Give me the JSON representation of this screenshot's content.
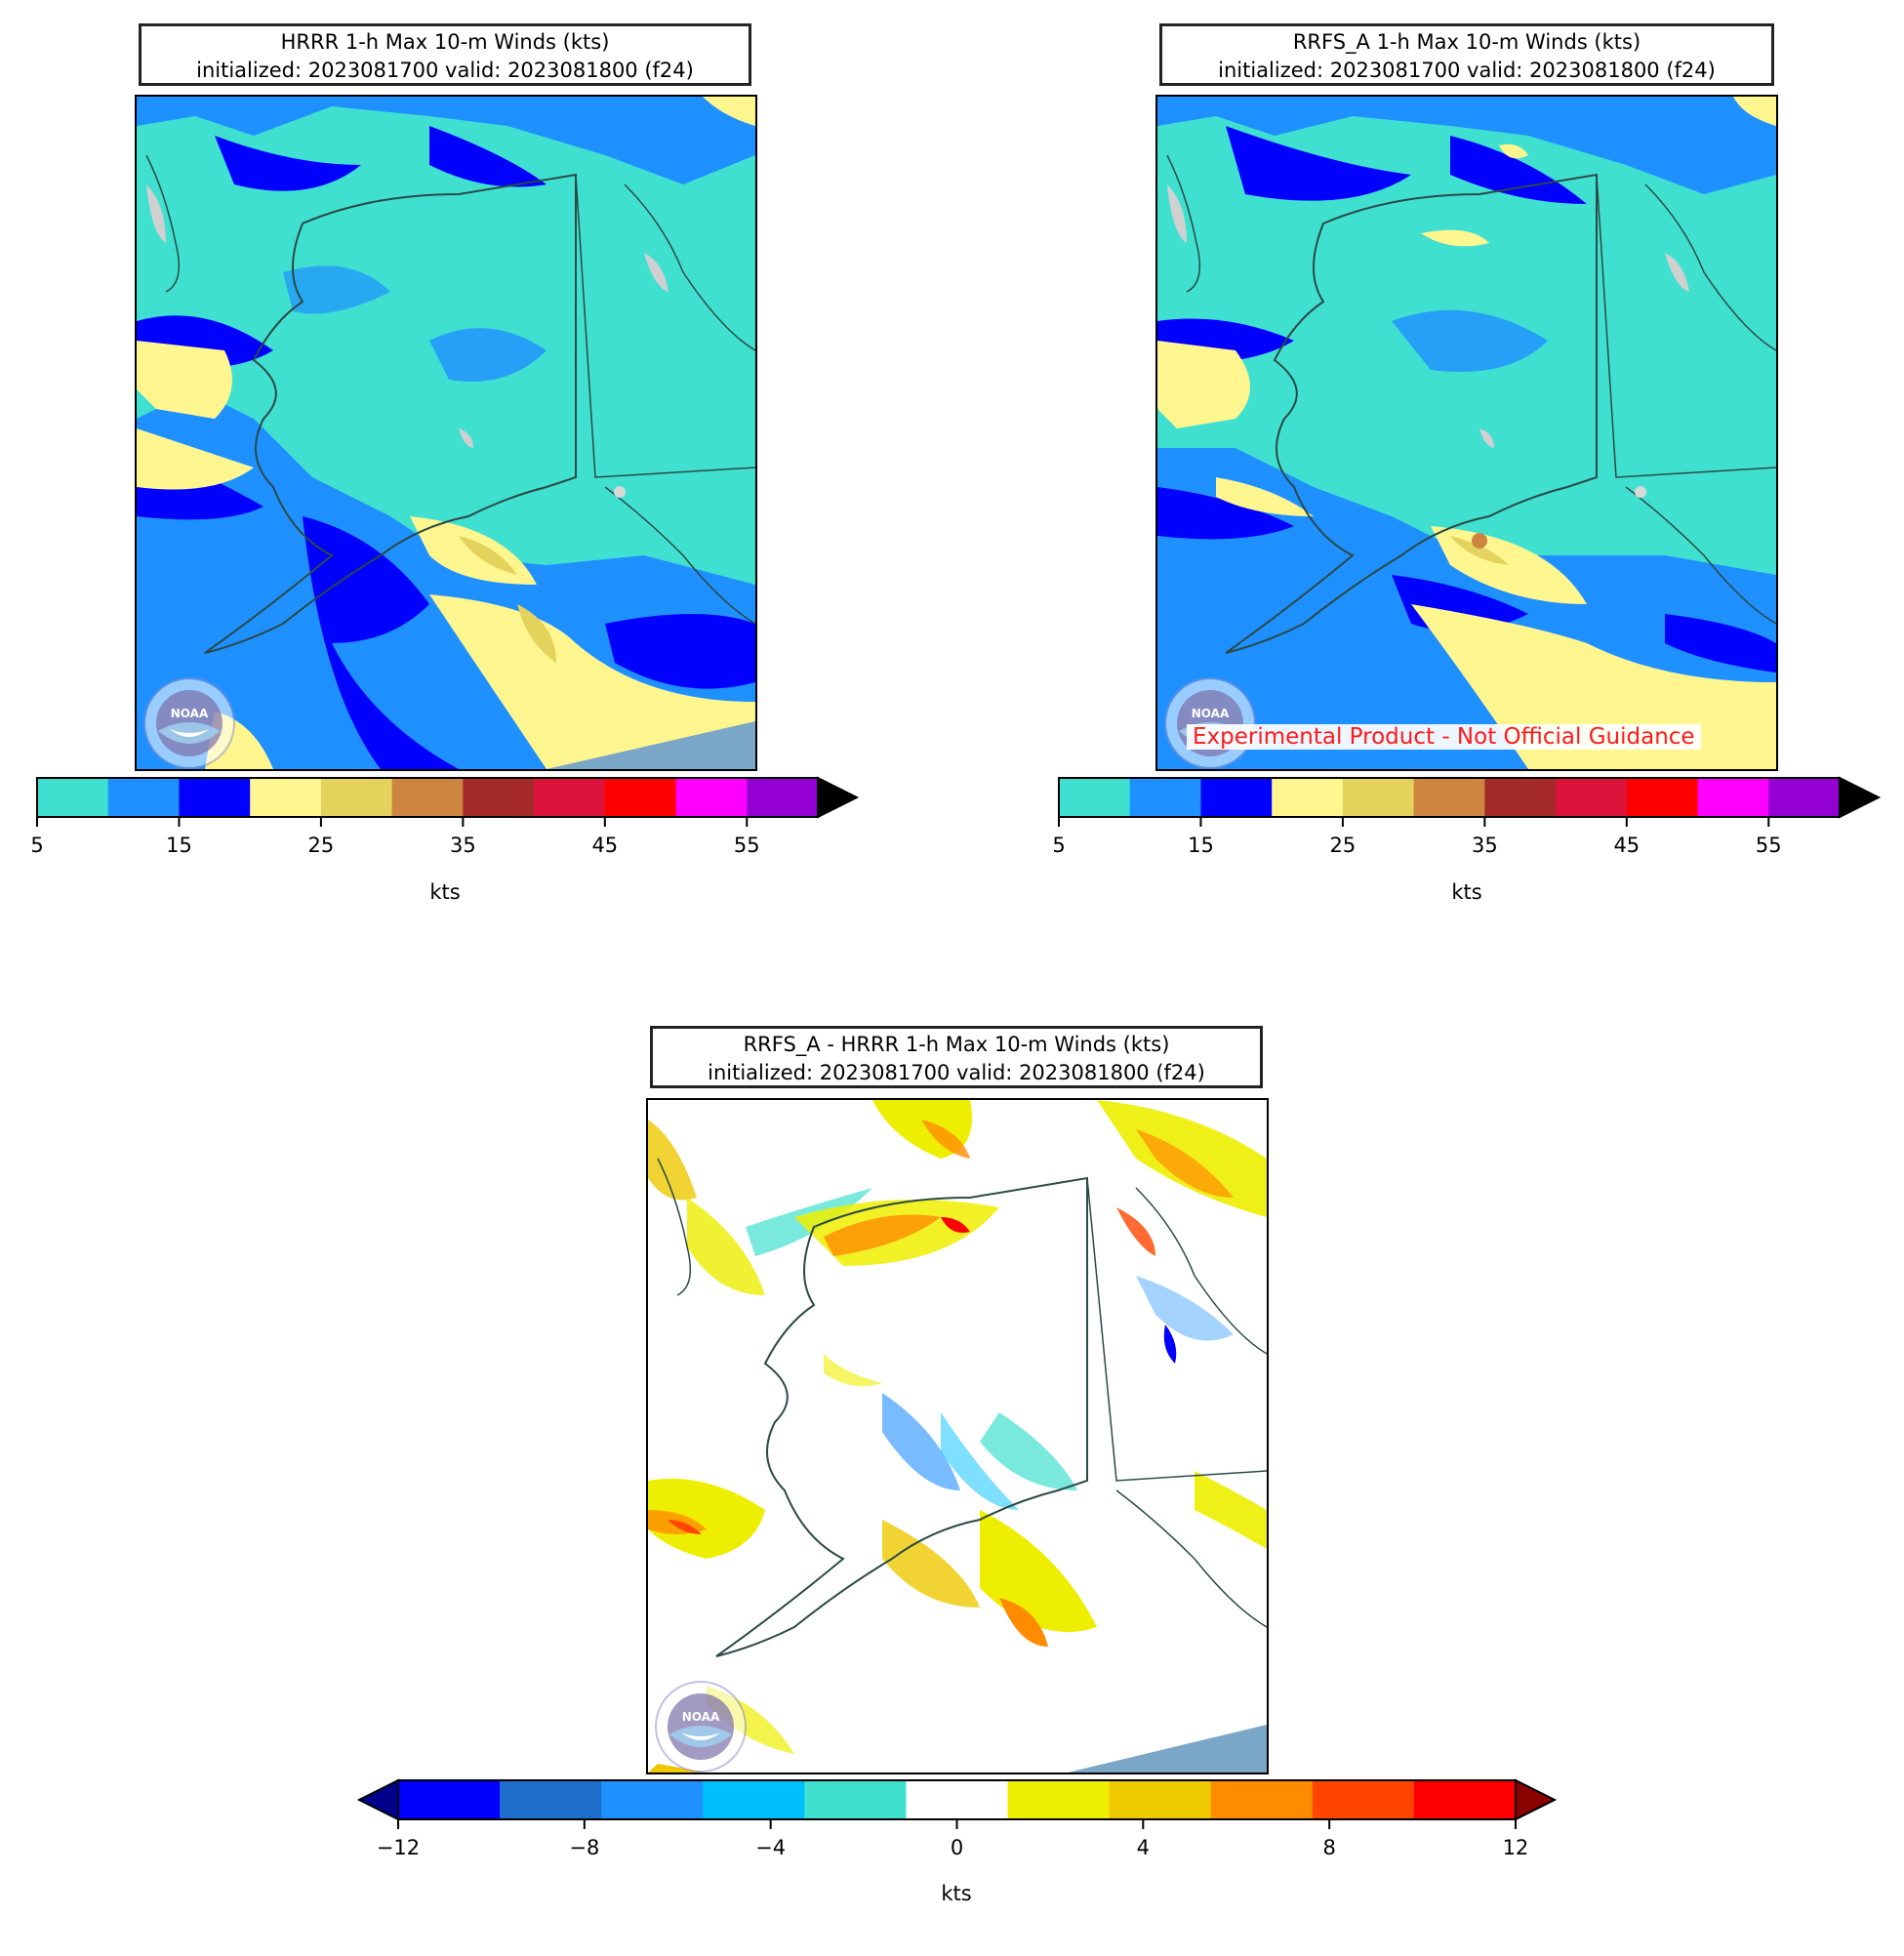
{
  "panels": [
    {
      "id": "hrrr",
      "title_line1": "HRRR 1-h Max 10-m Winds (kts)",
      "title_line2": "initialized: 2023081700 valid: 2023081800 (f24)",
      "logo_text": "NOAA",
      "units": "kts"
    },
    {
      "id": "rrfs",
      "title_line1": "RRFS_A 1-h Max 10-m Winds (kts)",
      "title_line2": "initialized: 2023081700 valid: 2023081800 (f24)",
      "logo_text": "NOAA",
      "watermark": "Experimental Product - Not Official Guidance",
      "units": "kts"
    },
    {
      "id": "diff",
      "title_line1": "RRFS_A - HRRR 1-h Max 10-m Winds (kts)",
      "title_line2": "initialized: 2023081700 valid: 2023081800 (f24)",
      "logo_text": "NOAA",
      "units": "kts"
    }
  ],
  "wind_colorbar": {
    "levels": [
      5,
      10,
      15,
      20,
      25,
      30,
      35,
      40,
      45,
      50,
      55,
      60
    ],
    "colors": [
      "#40e0d0",
      "#1e90ff",
      "#0000ff",
      "#fff68f",
      "#e3d25c",
      "#cd853f",
      "#a52a2a",
      "#dc143c",
      "#ff0000",
      "#ff00ff",
      "#9400d3"
    ],
    "extend_max_color": "#000000",
    "tick_values": [
      "5",
      "15",
      "25",
      "35",
      "45",
      "55"
    ]
  },
  "diff_colorbar": {
    "levels": [
      -12,
      -10,
      -8,
      -6,
      -4,
      -2,
      2,
      4,
      6,
      8,
      10,
      12
    ],
    "colors": [
      "#0000ff",
      "#1e6fcc",
      "#1e90ff",
      "#00bfff",
      "#40e0d0",
      "#ffffff",
      "#eeee00",
      "#eec900",
      "#ff8c00",
      "#ff4500",
      "#ff0000"
    ],
    "extend_min_color": "#00008b",
    "extend_max_color": "#8b0000",
    "tick_values": [
      "−12",
      "−8",
      "−4",
      "0",
      "4",
      "8",
      "12"
    ]
  }
}
